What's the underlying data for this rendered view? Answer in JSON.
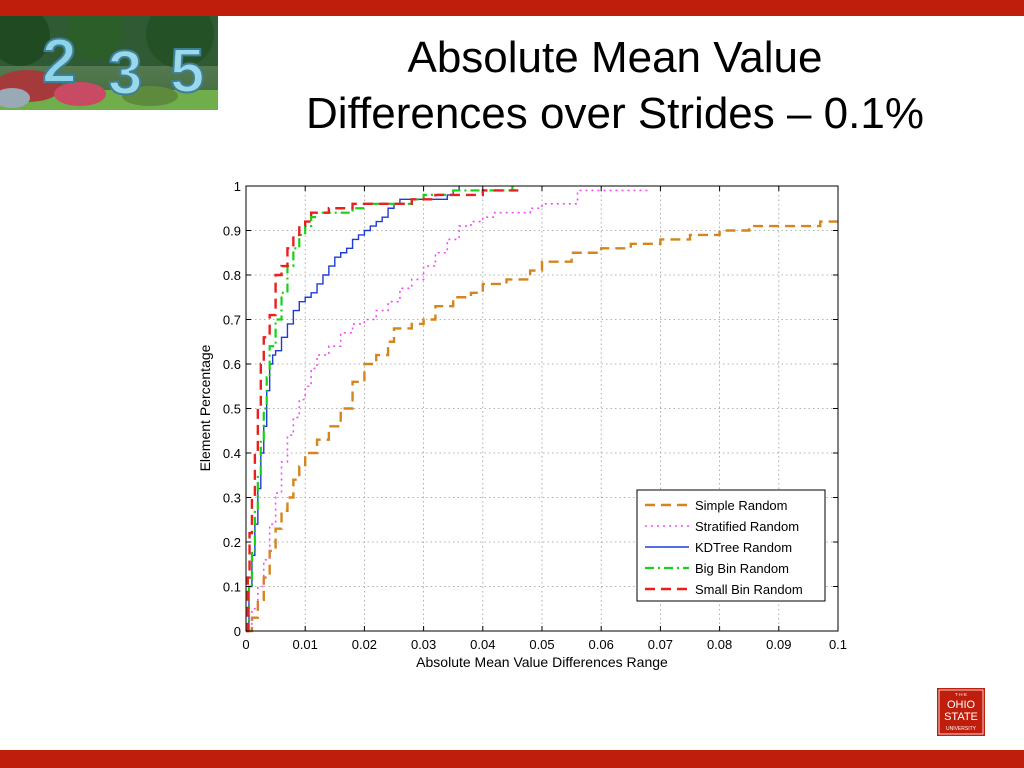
{
  "slide": {
    "title_line1": "Absolute Mean Value",
    "title_line2": "Differences over Strides – 0.1%",
    "photo_digits": [
      "2",
      "3",
      "5"
    ],
    "logo": {
      "top": "T·H·E",
      "line1": "OHIO",
      "line2": "STATE",
      "line3": "UNIVERSITY"
    }
  },
  "colors": {
    "accent": "#be1e0b"
  },
  "chart_data": {
    "type": "line",
    "xlabel": "Absolute Mean Value Differences Range",
    "ylabel": "Element Percentage",
    "xlim": [
      0,
      0.1
    ],
    "ylim": [
      0,
      1
    ],
    "grid": true,
    "legend_position": "bottom-right",
    "x_ticks": [
      0,
      0.01,
      0.02,
      0.03,
      0.04,
      0.05,
      0.06,
      0.07,
      0.08,
      0.09,
      0.1
    ],
    "x_tick_labels": [
      "0",
      "0.01",
      "0.02",
      "0.03",
      "0.04",
      "0.05",
      "0.06",
      "0.07",
      "0.08",
      "0.09",
      "0.1"
    ],
    "y_ticks": [
      0,
      0.1,
      0.2,
      0.3,
      0.4,
      0.5,
      0.6,
      0.7,
      0.8,
      0.9,
      1
    ],
    "y_tick_labels": [
      "0",
      "0.1",
      "0.2",
      "0.3",
      "0.4",
      "0.5",
      "0.6",
      "0.7",
      "0.8",
      "0.9",
      "1"
    ],
    "series": [
      {
        "name": "Simple Random",
        "color": "#d4851b",
        "dash": "dashed",
        "points": [
          [
            0,
            0
          ],
          [
            0.001,
            0.03
          ],
          [
            0.002,
            0.07
          ],
          [
            0.003,
            0.12
          ],
          [
            0.004,
            0.18
          ],
          [
            0.005,
            0.23
          ],
          [
            0.006,
            0.27
          ],
          [
            0.007,
            0.3
          ],
          [
            0.008,
            0.34
          ],
          [
            0.009,
            0.37
          ],
          [
            0.01,
            0.4
          ],
          [
            0.012,
            0.43
          ],
          [
            0.014,
            0.46
          ],
          [
            0.016,
            0.5
          ],
          [
            0.018,
            0.56
          ],
          [
            0.02,
            0.6
          ],
          [
            0.022,
            0.62
          ],
          [
            0.024,
            0.65
          ],
          [
            0.025,
            0.68
          ],
          [
            0.028,
            0.69
          ],
          [
            0.03,
            0.7
          ],
          [
            0.032,
            0.73
          ],
          [
            0.035,
            0.75
          ],
          [
            0.038,
            0.76
          ],
          [
            0.04,
            0.78
          ],
          [
            0.044,
            0.79
          ],
          [
            0.048,
            0.81
          ],
          [
            0.05,
            0.83
          ],
          [
            0.055,
            0.85
          ],
          [
            0.06,
            0.86
          ],
          [
            0.065,
            0.87
          ],
          [
            0.07,
            0.88
          ],
          [
            0.075,
            0.89
          ],
          [
            0.08,
            0.9
          ],
          [
            0.085,
            0.91
          ],
          [
            0.09,
            0.91
          ],
          [
            0.095,
            0.91
          ],
          [
            0.097,
            0.92
          ],
          [
            0.1,
            0.92
          ]
        ]
      },
      {
        "name": "Stratified Random",
        "color": "#f04df0",
        "dash": "dotted",
        "points": [
          [
            0,
            0
          ],
          [
            0.001,
            0.05
          ],
          [
            0.002,
            0.1
          ],
          [
            0.003,
            0.16
          ],
          [
            0.004,
            0.24
          ],
          [
            0.005,
            0.31
          ],
          [
            0.006,
            0.38
          ],
          [
            0.007,
            0.44
          ],
          [
            0.008,
            0.48
          ],
          [
            0.009,
            0.52
          ],
          [
            0.01,
            0.55
          ],
          [
            0.011,
            0.59
          ],
          [
            0.012,
            0.62
          ],
          [
            0.014,
            0.64
          ],
          [
            0.016,
            0.67
          ],
          [
            0.018,
            0.69
          ],
          [
            0.02,
            0.7
          ],
          [
            0.022,
            0.72
          ],
          [
            0.024,
            0.74
          ],
          [
            0.026,
            0.77
          ],
          [
            0.028,
            0.79
          ],
          [
            0.03,
            0.82
          ],
          [
            0.032,
            0.85
          ],
          [
            0.034,
            0.88
          ],
          [
            0.036,
            0.91
          ],
          [
            0.038,
            0.92
          ],
          [
            0.04,
            0.93
          ],
          [
            0.042,
            0.94
          ],
          [
            0.046,
            0.94
          ],
          [
            0.048,
            0.95
          ],
          [
            0.05,
            0.96
          ],
          [
            0.054,
            0.96
          ],
          [
            0.056,
            0.99
          ],
          [
            0.06,
            0.99
          ],
          [
            0.068,
            0.99
          ]
        ]
      },
      {
        "name": "KDTree Random",
        "color": "#1f3bd6",
        "dash": "solid",
        "points": [
          [
            0,
            0
          ],
          [
            0.0005,
            0.1
          ],
          [
            0.001,
            0.17
          ],
          [
            0.0015,
            0.24
          ],
          [
            0.002,
            0.32
          ],
          [
            0.0025,
            0.4
          ],
          [
            0.003,
            0.46
          ],
          [
            0.0035,
            0.54
          ],
          [
            0.004,
            0.6
          ],
          [
            0.0045,
            0.62
          ],
          [
            0.005,
            0.63
          ],
          [
            0.006,
            0.66
          ],
          [
            0.007,
            0.69
          ],
          [
            0.008,
            0.72
          ],
          [
            0.009,
            0.74
          ],
          [
            0.01,
            0.75
          ],
          [
            0.011,
            0.76
          ],
          [
            0.012,
            0.78
          ],
          [
            0.013,
            0.8
          ],
          [
            0.014,
            0.82
          ],
          [
            0.015,
            0.84
          ],
          [
            0.016,
            0.85
          ],
          [
            0.017,
            0.86
          ],
          [
            0.018,
            0.88
          ],
          [
            0.019,
            0.89
          ],
          [
            0.02,
            0.9
          ],
          [
            0.021,
            0.91
          ],
          [
            0.022,
            0.92
          ],
          [
            0.023,
            0.93
          ],
          [
            0.024,
            0.95
          ],
          [
            0.025,
            0.96
          ],
          [
            0.026,
            0.97
          ],
          [
            0.028,
            0.97
          ],
          [
            0.03,
            0.97
          ],
          [
            0.032,
            0.97
          ],
          [
            0.034,
            0.98
          ],
          [
            0.035,
            0.99
          ],
          [
            0.036,
            1.0
          ]
        ]
      },
      {
        "name": "Big Bin Random",
        "color": "#16d216",
        "dash": "dashdot",
        "points": [
          [
            0,
            0
          ],
          [
            0.0005,
            0.1
          ],
          [
            0.001,
            0.18
          ],
          [
            0.0015,
            0.27
          ],
          [
            0.002,
            0.35
          ],
          [
            0.0025,
            0.43
          ],
          [
            0.003,
            0.5
          ],
          [
            0.0035,
            0.57
          ],
          [
            0.004,
            0.64
          ],
          [
            0.005,
            0.7
          ],
          [
            0.006,
            0.76
          ],
          [
            0.007,
            0.82
          ],
          [
            0.008,
            0.86
          ],
          [
            0.009,
            0.89
          ],
          [
            0.01,
            0.91
          ],
          [
            0.011,
            0.93
          ],
          [
            0.012,
            0.94
          ],
          [
            0.014,
            0.94
          ],
          [
            0.016,
            0.94
          ],
          [
            0.018,
            0.95
          ],
          [
            0.02,
            0.96
          ],
          [
            0.025,
            0.96
          ],
          [
            0.028,
            0.97
          ],
          [
            0.03,
            0.98
          ],
          [
            0.033,
            0.98
          ],
          [
            0.035,
            0.99
          ],
          [
            0.04,
            0.99
          ],
          [
            0.044,
            0.99
          ],
          [
            0.045,
            1.0
          ]
        ]
      },
      {
        "name": "Small Bin Random",
        "color": "#e8201f",
        "dash": "dashed",
        "points": [
          [
            0,
            0
          ],
          [
            0.0003,
            0.12
          ],
          [
            0.0006,
            0.22
          ],
          [
            0.001,
            0.3
          ],
          [
            0.0015,
            0.4
          ],
          [
            0.002,
            0.5
          ],
          [
            0.0025,
            0.6
          ],
          [
            0.003,
            0.66
          ],
          [
            0.004,
            0.71
          ],
          [
            0.005,
            0.8
          ],
          [
            0.006,
            0.82
          ],
          [
            0.007,
            0.86
          ],
          [
            0.008,
            0.89
          ],
          [
            0.009,
            0.91
          ],
          [
            0.01,
            0.92
          ],
          [
            0.011,
            0.94
          ],
          [
            0.012,
            0.94
          ],
          [
            0.014,
            0.95
          ],
          [
            0.016,
            0.95
          ],
          [
            0.018,
            0.96
          ],
          [
            0.02,
            0.96
          ],
          [
            0.025,
            0.96
          ],
          [
            0.028,
            0.97
          ],
          [
            0.03,
            0.97
          ],
          [
            0.032,
            0.98
          ],
          [
            0.038,
            0.98
          ],
          [
            0.04,
            0.99
          ],
          [
            0.046,
            0.99
          ]
        ]
      }
    ]
  }
}
